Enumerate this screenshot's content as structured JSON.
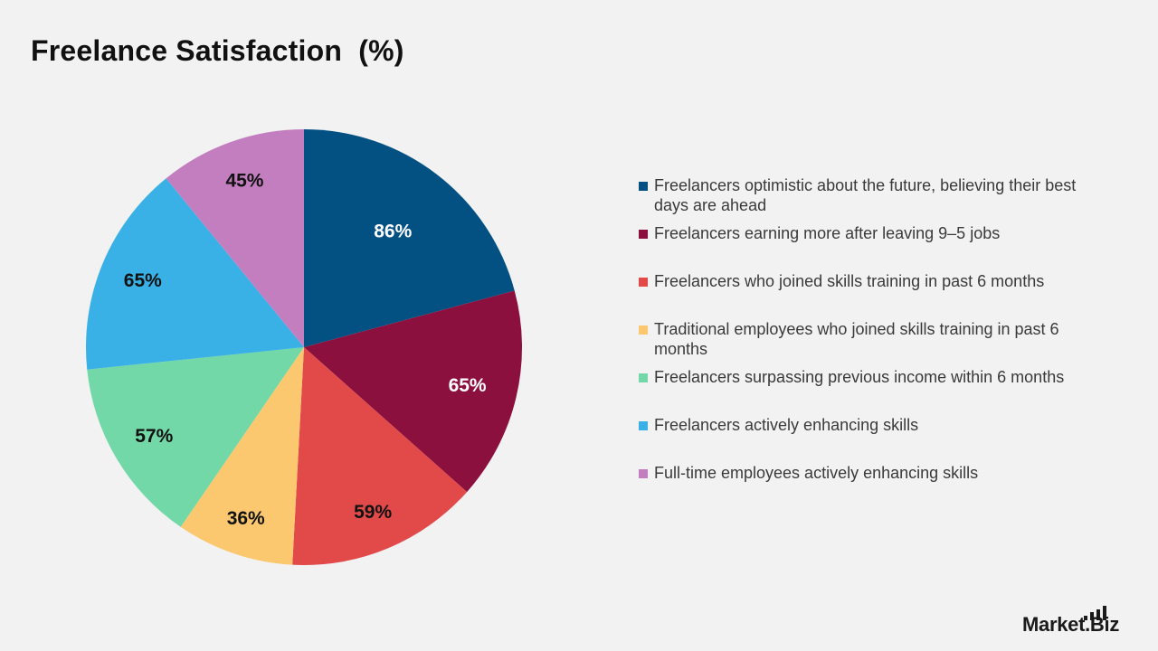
{
  "chart_data": {
    "type": "pie",
    "title": "Freelance Satisfaction  (%)",
    "slices": [
      {
        "label": "Freelancers optimistic about the future, believing their best days are ahead",
        "value": 86,
        "display": "86%",
        "color": "#035083",
        "label_color": "#ffffff"
      },
      {
        "label": "Freelancers earning more after leaving 9–5 jobs",
        "value": 65,
        "display": "65%",
        "color": "#8b103e",
        "label_color": "#ffffff"
      },
      {
        "label": "Freelancers who joined skills training in past 6 months",
        "value": 59,
        "display": "59%",
        "color": "#e24a4a",
        "label_color": "#111111"
      },
      {
        "label": "Traditional employees who joined skills training in past 6 months",
        "value": 36,
        "display": "36%",
        "color": "#fbc86f",
        "label_color": "#111111"
      },
      {
        "label": "Freelancers surpassing previous income within 6 months",
        "value": 57,
        "display": "57%",
        "color": "#72d8a8",
        "label_color": "#111111"
      },
      {
        "label": "Freelancers actively enhancing skills",
        "value": 65,
        "display": "65%",
        "color": "#39b1e6",
        "label_color": "#111111"
      },
      {
        "label": "Full-time employees actively enhancing skills",
        "value": 45,
        "display": "45%",
        "color": "#c37ebf",
        "label_color": "#111111"
      }
    ],
    "legend_position": "right"
  },
  "brand": {
    "name": "Market.Biz",
    "logo_icon": "bar-chart-icon"
  }
}
